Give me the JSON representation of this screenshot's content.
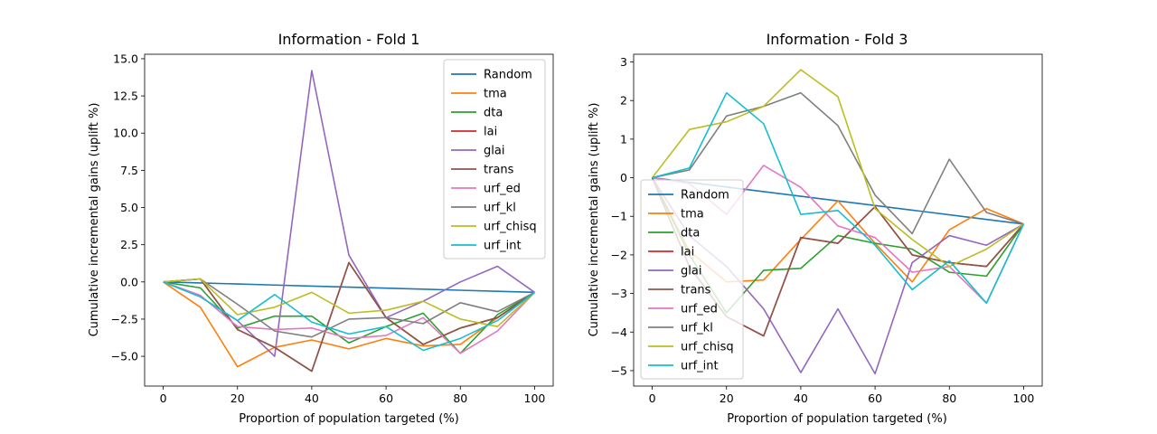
{
  "chart_data": [
    {
      "type": "line",
      "title": "Information - Fold 1",
      "xlabel": "Proportion of population targeted (%)",
      "ylabel": "Cumulative incremental gains (uplift %)",
      "xlim": [
        -5,
        105
      ],
      "ylim": [
        -7.0,
        15.3
      ],
      "xticks": [
        0,
        20,
        40,
        60,
        80,
        100
      ],
      "yticks": [
        -5.0,
        -2.5,
        0.0,
        2.5,
        5.0,
        7.5,
        10.0,
        12.5,
        15.0
      ],
      "ytick_labels": [
        "−5.0",
        "−2.5",
        "0.0",
        "2.5",
        "5.0",
        "7.5",
        "10.0",
        "12.5",
        "15.0"
      ],
      "grid": false,
      "legend": "upper-right",
      "x": [
        0,
        10,
        20,
        30,
        40,
        50,
        60,
        70,
        80,
        90,
        100
      ],
      "series": [
        {
          "name": "Random",
          "color": "#1f77b4",
          "values": [
            0.0,
            -0.07,
            -0.14,
            -0.21,
            -0.28,
            -0.35,
            -0.42,
            -0.49,
            -0.56,
            -0.63,
            -0.7
          ]
        },
        {
          "name": "tma",
          "color": "#ff7f0e",
          "values": [
            0.0,
            -1.7,
            -5.7,
            -4.4,
            -3.9,
            -4.5,
            -3.8,
            -4.3,
            -4.2,
            -2.4,
            -0.7
          ]
        },
        {
          "name": "dta",
          "color": "#2ca02c",
          "values": [
            0.0,
            -0.4,
            -3.1,
            -2.3,
            -2.3,
            -4.1,
            -3.0,
            -2.1,
            -4.8,
            -2.2,
            -0.7
          ]
        },
        {
          "name": "lai",
          "color": "#d62728",
          "values": [
            0.0,
            0.2,
            -3.2,
            -4.4,
            -6.0,
            1.3,
            -2.4,
            -4.2,
            -3.1,
            -2.4,
            -0.7
          ]
        },
        {
          "name": "glai",
          "color": "#9467bd",
          "values": [
            0.0,
            -1.0,
            -2.6,
            -5.0,
            14.2,
            1.8,
            -2.4,
            -1.3,
            0.0,
            1.05,
            -0.7
          ]
        },
        {
          "name": "trans",
          "color": "#8c564b",
          "values": [
            0.0,
            0.2,
            -3.2,
            -4.4,
            -6.0,
            1.3,
            -2.4,
            -4.2,
            -3.1,
            -2.4,
            -0.7
          ]
        },
        {
          "name": "urf_ed",
          "color": "#e377c2",
          "values": [
            0.0,
            -0.9,
            -3.0,
            -3.2,
            -3.1,
            -3.8,
            -3.6,
            -2.4,
            -4.8,
            -3.3,
            -0.7
          ]
        },
        {
          "name": "urf_kl",
          "color": "#7f7f7f",
          "values": [
            0.0,
            0.2,
            -1.5,
            -3.3,
            -3.7,
            -2.5,
            -2.4,
            -2.8,
            -1.4,
            -2.0,
            -0.7
          ]
        },
        {
          "name": "urf_chisq",
          "color": "#bcbd22",
          "values": [
            0.0,
            0.2,
            -2.2,
            -1.7,
            -0.7,
            -2.1,
            -1.9,
            -1.3,
            -2.5,
            -3.0,
            -0.7
          ]
        },
        {
          "name": "urf_int",
          "color": "#17becf",
          "values": [
            0.0,
            -1.0,
            -2.6,
            -0.85,
            -2.7,
            -3.5,
            -3.0,
            -4.6,
            -3.8,
            -2.6,
            -0.7
          ]
        }
      ]
    },
    {
      "type": "line",
      "title": "Information - Fold 3",
      "xlabel": "Proportion of population targeted (%)",
      "ylabel": "Cumulative incremental gains (uplift %)",
      "xlim": [
        -5,
        105
      ],
      "ylim": [
        -5.4,
        3.2
      ],
      "xticks": [
        0,
        20,
        40,
        60,
        80,
        100
      ],
      "yticks": [
        -5,
        -4,
        -3,
        -2,
        -1,
        0,
        1,
        2,
        3
      ],
      "ytick_labels": [
        "−5",
        "−4",
        "−3",
        "−2",
        "−1",
        "0",
        "1",
        "2",
        "3"
      ],
      "grid": false,
      "legend": "lower-left",
      "x": [
        0,
        10,
        20,
        30,
        40,
        50,
        60,
        70,
        80,
        90,
        100
      ],
      "series": [
        {
          "name": "Random",
          "color": "#1f77b4",
          "values": [
            0.0,
            -0.12,
            -0.24,
            -0.36,
            -0.48,
            -0.6,
            -0.72,
            -0.84,
            -0.96,
            -1.08,
            -1.2
          ]
        },
        {
          "name": "tma",
          "color": "#ff7f0e",
          "values": [
            0.0,
            -1.9,
            -2.7,
            -2.65,
            -1.6,
            -0.6,
            -1.7,
            -2.7,
            -1.35,
            -0.8,
            -1.2
          ]
        },
        {
          "name": "dta",
          "color": "#2ca02c",
          "values": [
            0.0,
            -2.0,
            -3.5,
            -2.4,
            -2.35,
            -1.5,
            -1.7,
            -1.85,
            -2.45,
            -2.55,
            -1.2
          ]
        },
        {
          "name": "lai",
          "color": "#d62728",
          "values": [
            0.0,
            -2.3,
            -3.6,
            -4.1,
            -1.55,
            -1.7,
            -0.75,
            -2.0,
            -2.2,
            -2.3,
            -1.2
          ]
        },
        {
          "name": "glai",
          "color": "#9467bd",
          "values": [
            0.0,
            -1.5,
            -2.3,
            -3.4,
            -5.05,
            -3.4,
            -5.08,
            -2.2,
            -1.5,
            -1.75,
            -1.2
          ]
        },
        {
          "name": "trans",
          "color": "#8c564b",
          "values": [
            0.0,
            -2.3,
            -3.6,
            -4.1,
            -1.55,
            -1.7,
            -0.75,
            -2.0,
            -2.2,
            -2.3,
            -1.2
          ]
        },
        {
          "name": "urf_ed",
          "color": "#e377c2",
          "values": [
            0.0,
            -0.15,
            -0.95,
            0.32,
            -0.25,
            -1.25,
            -1.55,
            -2.45,
            -2.3,
            -3.25,
            -1.2
          ]
        },
        {
          "name": "urf_kl",
          "color": "#7f7f7f",
          "values": [
            0.0,
            0.2,
            1.6,
            1.85,
            2.2,
            1.35,
            -0.45,
            -1.45,
            0.48,
            -0.9,
            -1.2
          ]
        },
        {
          "name": "urf_chisq",
          "color": "#bcbd22",
          "values": [
            0.0,
            1.25,
            1.45,
            1.85,
            2.8,
            2.1,
            -0.8,
            -1.6,
            -2.3,
            -1.85,
            -1.2
          ]
        },
        {
          "name": "urf_int",
          "color": "#17becf",
          "values": [
            0.0,
            0.25,
            2.2,
            1.4,
            -0.95,
            -0.85,
            -1.75,
            -2.9,
            -2.15,
            -3.25,
            -1.2
          ]
        }
      ]
    }
  ]
}
